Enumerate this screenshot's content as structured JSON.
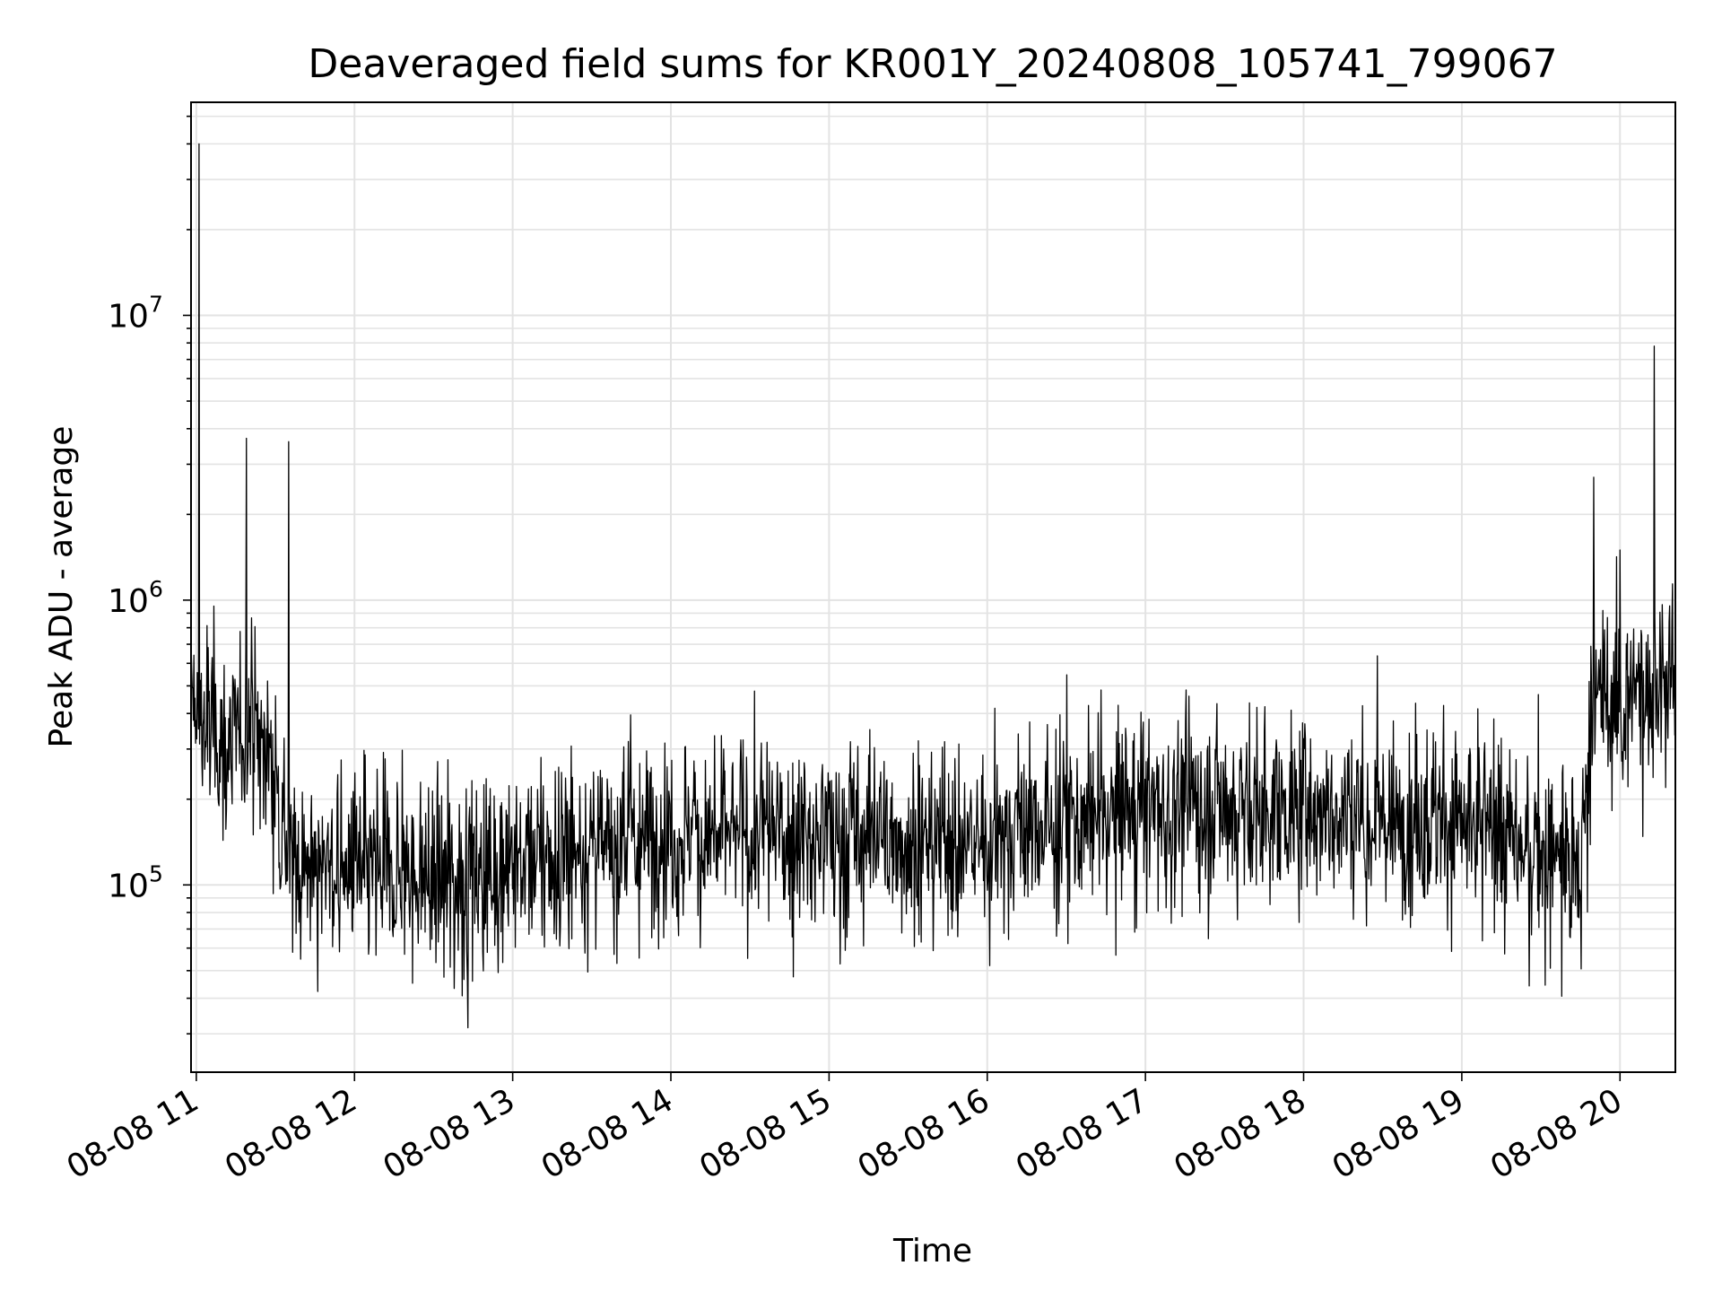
{
  "chart_data": {
    "type": "line",
    "title": "Deaveraged field sums for KR001Y_20240808_105741_799067",
    "xlabel": "Time",
    "ylabel": "Peak ADU - average",
    "yscale": "log",
    "xlim": [
      "2024-08-08 10:58",
      "2024-08-08 20:21"
    ],
    "ylim": [
      22000,
      56000000
    ],
    "grid": true,
    "line_color": "#000000",
    "x_ticks": [
      "08-08 11",
      "08-08 12",
      "08-08 13",
      "08-08 14",
      "08-08 15",
      "08-08 16",
      "08-08 17",
      "08-08 18",
      "08-08 19",
      "08-08 20"
    ],
    "y_ticks": [
      {
        "base": "10",
        "exp": "5",
        "value": 100000
      },
      {
        "base": "10",
        "exp": "6",
        "value": 1000000
      },
      {
        "base": "10",
        "exp": "7",
        "value": 10000000
      }
    ],
    "series": [
      {
        "x_start": "2024-08-08 10:58",
        "x_end": "2024-08-08 20:21",
        "baseline": [
          [
            "2024-08-08 10:58",
            430000
          ],
          [
            "2024-08-08 11:12",
            300000
          ],
          [
            "2024-08-08 11:22",
            400000
          ],
          [
            "2024-08-08 11:30",
            240000
          ],
          [
            "2024-08-08 11:36",
            120000
          ],
          [
            "2024-08-08 12:00",
            110000
          ],
          [
            "2024-08-08 12:30",
            105000
          ],
          [
            "2024-08-08 13:00",
            120000
          ],
          [
            "2024-08-08 14:00",
            150000
          ],
          [
            "2024-08-08 15:00",
            150000
          ],
          [
            "2024-08-08 15:50",
            140000
          ],
          [
            "2024-08-08 16:10",
            150000
          ],
          [
            "2024-08-08 17:00",
            190000
          ],
          [
            "2024-08-08 18:00",
            185000
          ],
          [
            "2024-08-08 19:00",
            165000
          ],
          [
            "2024-08-08 19:35",
            125000
          ],
          [
            "2024-08-08 19:45",
            100000
          ],
          [
            "2024-08-08 19:49",
            440000
          ],
          [
            "2024-08-08 20:21",
            520000
          ]
        ],
        "peaks": [
          [
            "2024-08-08 11:01",
            40000000
          ],
          [
            "2024-08-08 11:19",
            3700000
          ],
          [
            "2024-08-08 11:35",
            3600000
          ],
          [
            "2024-08-08 19:50",
            2700000
          ],
          [
            "2024-08-08 20:00",
            1500000
          ],
          [
            "2024-08-08 20:13",
            7800000
          ]
        ]
      }
    ]
  }
}
